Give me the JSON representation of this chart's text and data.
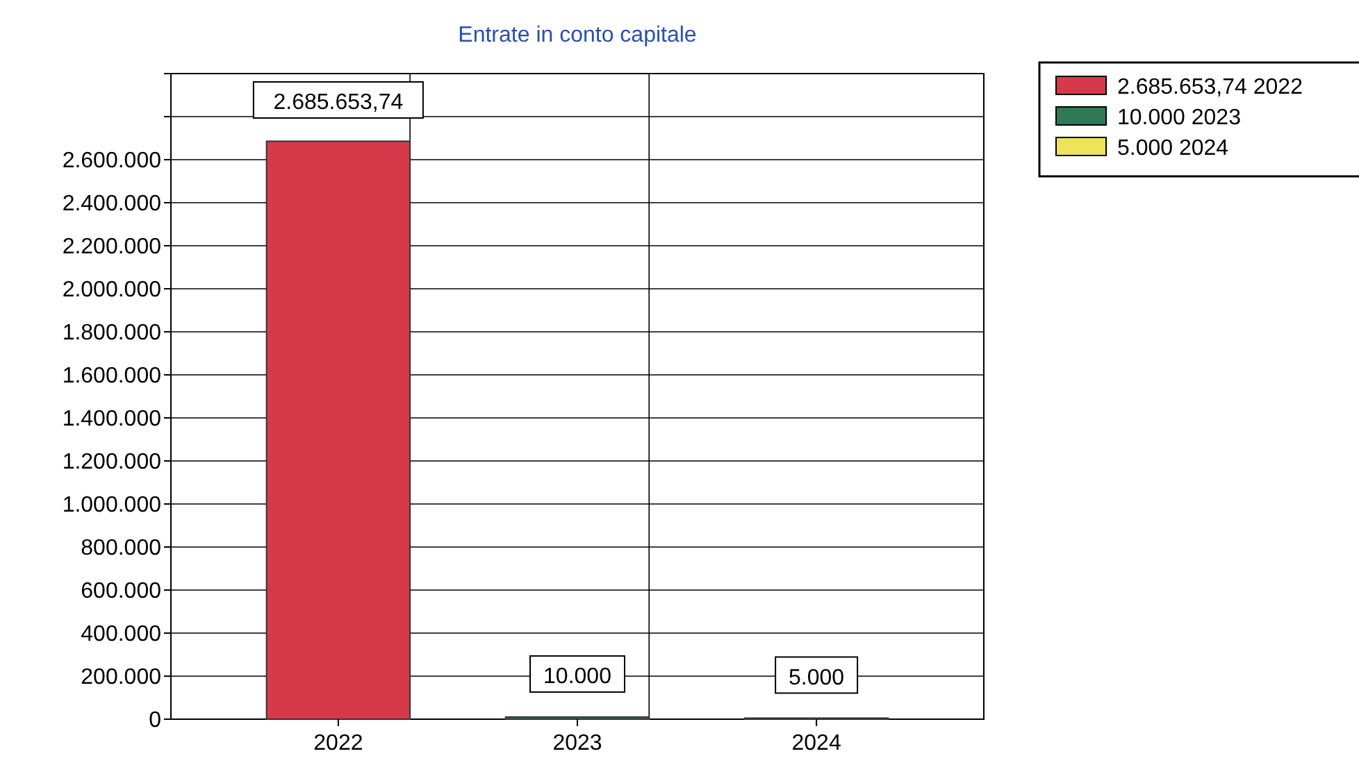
{
  "chart_data": {
    "type": "bar",
    "title": "Entrate in conto capitale",
    "categories": [
      "2022",
      "2023",
      "2024"
    ],
    "series": [
      {
        "name": "2.685.653,74 2022",
        "color": "#d63a4a",
        "values": [
          2685653.74,
          null,
          null
        ],
        "value_labels": [
          "2.685.653,74",
          null,
          null
        ]
      },
      {
        "name": "10.000 2023",
        "color": "#2f7a55",
        "values": [
          null,
          10000,
          null
        ],
        "value_labels": [
          null,
          "10.000",
          null
        ]
      },
      {
        "name": "5.000 2024",
        "color": "#eee45a",
        "values": [
          null,
          null,
          5000
        ],
        "value_labels": [
          null,
          null,
          "5.000"
        ]
      }
    ],
    "ylim": [
      0,
      3000000
    ],
    "yticks": [
      {
        "value": 0,
        "label": "0"
      },
      {
        "value": 200000,
        "label": "200.000"
      },
      {
        "value": 400000,
        "label": "400.000"
      },
      {
        "value": 600000,
        "label": "600.000"
      },
      {
        "value": 800000,
        "label": "800.000"
      },
      {
        "value": 1000000,
        "label": "1.000.000"
      },
      {
        "value": 1200000,
        "label": "1.200.000"
      },
      {
        "value": 1400000,
        "label": "1.400.000"
      },
      {
        "value": 1600000,
        "label": "1.600.000"
      },
      {
        "value": 1800000,
        "label": "1.800.000"
      },
      {
        "value": 2000000,
        "label": "2.000.000"
      },
      {
        "value": 2200000,
        "label": "2.200.000"
      },
      {
        "value": 2400000,
        "label": "2.400.000"
      },
      {
        "value": 2600000,
        "label": "2.600.000"
      },
      {
        "value": 2800000,
        "label": null
      },
      {
        "value": 3000000,
        "label": null
      }
    ],
    "grid": true,
    "legend": "top right"
  }
}
